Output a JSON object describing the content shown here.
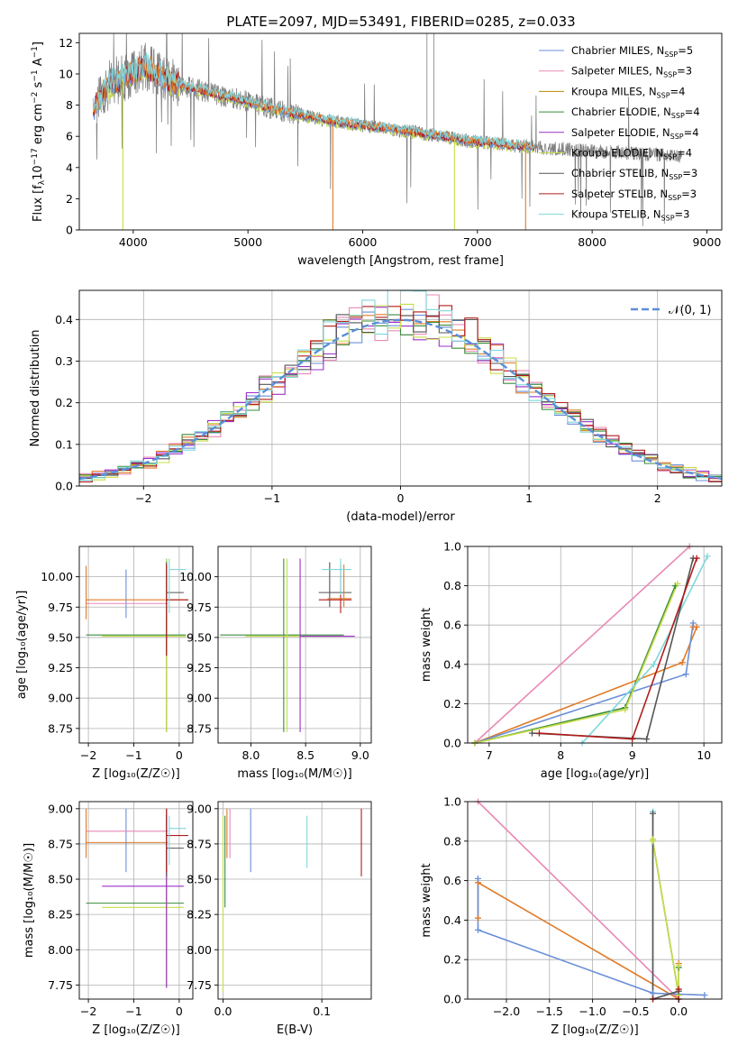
{
  "title": "PLATE=2097, MJD=53491, FIBERID=0285, z=0.033",
  "colors": {
    "chabrier_miles": "#6b8fd8",
    "salpeter_miles": "#e889b5",
    "kroupa_miles": "#b8860b",
    "chabrier_elodie": "#3a8c3a",
    "salpeter_elodie": "#9b30c8",
    "kroupa_elodie": "#c8dc4a",
    "chabrier_stelib": "#555555",
    "salpeter_stelib": "#b01c1c",
    "kroupa_stelib": "#7fd7dc",
    "orange": "#e07b28",
    "data_gray": "#808080",
    "normal_dash": "#5b8fd9"
  },
  "chart_data": [
    {
      "id": "spectrum",
      "type": "line",
      "xlabel": "wavelength [Angstrom, rest frame]",
      "ylabel_parts": [
        "Flux [f",
        "λ",
        "10",
        "−17",
        " erg cm",
        "−2",
        " s",
        "−1",
        " A",
        "−1",
        "]"
      ],
      "xlim": [
        3530,
        9130
      ],
      "ylim": [
        0,
        12.6
      ],
      "xticks": [
        4000,
        5000,
        6000,
        7000,
        8000,
        9000
      ],
      "yticks": [
        0,
        2,
        4,
        6,
        8,
        10,
        12
      ],
      "legend_position": "top-right",
      "legend": [
        {
          "label": "Chabrier MILES, N",
          "sub": "SSP",
          "suffix": "=5",
          "color_key": "chabrier_miles"
        },
        {
          "label": "Salpeter MILES, N",
          "sub": "SSP",
          "suffix": "=3",
          "color_key": "salpeter_miles"
        },
        {
          "label": "Kroupa MILES, N",
          "sub": "SSP",
          "suffix": "=4",
          "color_key": "kroupa_miles"
        },
        {
          "label": "Chabrier ELODIE, N",
          "sub": "SSP",
          "suffix": "=4",
          "color_key": "chabrier_elodie"
        },
        {
          "label": "Salpeter ELODIE, N",
          "sub": "SSP",
          "suffix": "=4",
          "color_key": "salpeter_elodie"
        },
        {
          "label": "Kroupa ELODIE, N",
          "sub": "SSP",
          "suffix": "=4",
          "color_key": "kroupa_elodie"
        },
        {
          "label": "Chabrier STELIB, N",
          "sub": "SSP",
          "suffix": "=3",
          "color_key": "chabrier_stelib"
        },
        {
          "label": "Salpeter STELIB, N",
          "sub": "SSP",
          "suffix": "=3",
          "color_key": "salpeter_stelib"
        },
        {
          "label": "Kroupa STELIB, N",
          "sub": "SSP",
          "suffix": "=3",
          "color_key": "kroupa_stelib"
        }
      ],
      "continuum": [
        [
          3650,
          7.8
        ],
        [
          3800,
          9.4
        ],
        [
          3950,
          9.8
        ],
        [
          4100,
          10.5
        ],
        [
          4300,
          9.6
        ],
        [
          4500,
          9.1
        ],
        [
          4700,
          8.7
        ],
        [
          4900,
          8.4
        ],
        [
          5100,
          8.0
        ],
        [
          5300,
          7.6
        ],
        [
          5500,
          7.3
        ],
        [
          5700,
          7.0
        ],
        [
          5900,
          6.8
        ],
        [
          6100,
          6.6
        ],
        [
          6300,
          6.4
        ],
        [
          6500,
          6.2
        ],
        [
          6700,
          6.0
        ],
        [
          6900,
          5.7
        ],
        [
          7100,
          5.6
        ],
        [
          7300,
          5.4
        ],
        [
          7500,
          5.3
        ]
      ],
      "drop_lines": [
        {
          "x": 3910,
          "y": 0,
          "color_key": "kroupa_elodie"
        },
        {
          "x": 5740,
          "y": 0,
          "color_key": "orange"
        },
        {
          "x": 6800,
          "y": 0,
          "color_key": "kroupa_elodie"
        },
        {
          "x": 7420,
          "y": 0,
          "color_key": "orange"
        }
      ]
    },
    {
      "id": "residuals",
      "type": "step",
      "xlabel": "(data-model)/error",
      "ylabel": "Normed distribution",
      "xlim": [
        -2.5,
        2.5
      ],
      "ylim": [
        0,
        0.47
      ],
      "xticks": [
        -2,
        -1,
        0,
        1,
        2
      ],
      "yticks": [
        0.0,
        0.1,
        0.2,
        0.3,
        0.4
      ],
      "grid": true,
      "legend_position": "top-right",
      "normal_label": "𝒩(0, 1)",
      "bin_width": 0.1
    },
    {
      "id": "age_vs_Z",
      "type": "errorbar",
      "xlabel": "Z [log₁₀(Z/Z☉)]",
      "ylabel": "age  [log₁₀(age/yr)]",
      "xlim": [
        -2.2,
        0.3
      ],
      "ylim": [
        8.63,
        10.25
      ],
      "xticks": [
        -2,
        -1,
        0
      ],
      "yticks": [
        8.75,
        9.0,
        9.25,
        9.5,
        9.75,
        10.0
      ],
      "grid": true,
      "points": [
        {
          "x": -1.17,
          "y": 9.86,
          "xerr": 0,
          "yerr": 0.2,
          "color_key": "chabrier_miles"
        },
        {
          "x": -1.1,
          "y": 9.78,
          "xlo": -2.05,
          "xhi": -0.25,
          "yerr": 0,
          "color_key": "salpeter_miles"
        },
        {
          "x": -1.1,
          "y": 9.81,
          "xlo": -2.05,
          "xhi": 0.2,
          "yerr": 0,
          "color_key": "orange"
        },
        {
          "x": -2.05,
          "y": 9.87,
          "xerr": 0,
          "yerr": 0.22,
          "color_key": "orange"
        },
        {
          "x": -0.28,
          "y": 9.52,
          "xlo": -2.05,
          "xhi": 0.15,
          "ylo": 8.72,
          "yhi": 10.15,
          "color_key": "chabrier_elodie"
        },
        {
          "x": -0.28,
          "y": 9.51,
          "xlo": -1.7,
          "xhi": 0.15,
          "ylo": 8.72,
          "yhi": 10.15,
          "color_key": "kroupa_elodie"
        },
        {
          "x": -0.28,
          "y": 9.87,
          "xlo": -0.28,
          "xhi": 0.1,
          "ylo": 9.35,
          "yhi": 10.12,
          "color_key": "chabrier_stelib"
        },
        {
          "x": -0.28,
          "y": 9.81,
          "xlo": -0.28,
          "xhi": 0.2,
          "ylo": 9.35,
          "yhi": 10.1,
          "color_key": "salpeter_stelib"
        },
        {
          "x": -0.22,
          "y": 10.06,
          "xlo": -0.22,
          "xhi": 0.15,
          "ylo": 9.7,
          "yhi": 10.15,
          "color_key": "kroupa_stelib"
        }
      ]
    },
    {
      "id": "age_vs_mass",
      "type": "errorbar",
      "xlabel": "mass [log₁₀(M/M☉)]",
      "ylabel": "",
      "xlim": [
        7.7,
        9.1
      ],
      "ylim": [
        8.63,
        10.25
      ],
      "xticks": [
        8.0,
        8.5,
        9.0
      ],
      "yticks": [
        8.75,
        9.0,
        9.25,
        9.5,
        9.75,
        10.0
      ],
      "grid": true,
      "points": [
        {
          "x": 8.3,
          "y": 9.52,
          "xlo": 7.72,
          "xhi": 8.85,
          "ylo": 8.72,
          "yhi": 10.15,
          "color_key": "chabrier_elodie"
        },
        {
          "x": 8.33,
          "y": 9.51,
          "xlo": 7.95,
          "xhi": 8.82,
          "ylo": 8.72,
          "yhi": 10.15,
          "color_key": "kroupa_elodie"
        },
        {
          "x": 8.45,
          "y": 9.51,
          "xlo": 8.45,
          "xhi": 8.95,
          "ylo": 8.72,
          "yhi": 10.15,
          "color_key": "salpeter_elodie"
        },
        {
          "x": 8.72,
          "y": 9.87,
          "xlo": 8.62,
          "xhi": 8.92,
          "ylo": 9.75,
          "yhi": 10.12,
          "color_key": "chabrier_stelib"
        },
        {
          "x": 8.82,
          "y": 9.81,
          "xlo": 8.62,
          "xhi": 8.92,
          "ylo": 9.7,
          "yhi": 10.1,
          "color_key": "salpeter_stelib"
        },
        {
          "x": 8.85,
          "y": 9.82,
          "xlo": 8.7,
          "xhi": 8.92,
          "ylo": 9.75,
          "yhi": 10.1,
          "color_key": "orange"
        },
        {
          "x": 8.82,
          "y": 10.06,
          "xlo": 8.65,
          "xhi": 8.92,
          "ylo": 9.85,
          "yhi": 10.15,
          "color_key": "kroupa_stelib"
        }
      ]
    },
    {
      "id": "weight_vs_age",
      "type": "line",
      "xlabel": "age  [log₁₀(age/yr)]",
      "ylabel": "mass weight",
      "xlim": [
        6.7,
        10.25
      ],
      "ylim": [
        0,
        1.0
      ],
      "xticks": [
        7,
        8,
        9,
        10
      ],
      "yticks": [
        0.0,
        0.2,
        0.4,
        0.6,
        0.8,
        1.0
      ],
      "grid": true,
      "series": [
        {
          "color_key": "salpeter_miles",
          "x": [
            6.8,
            9.8
          ],
          "y": [
            0.0,
            1.0
          ]
        },
        {
          "color_key": "orange",
          "x": [
            6.8,
            9.7,
            9.9,
            9.85
          ],
          "y": [
            0.0,
            0.41,
            0.59,
            0.59
          ]
        },
        {
          "color_key": "chabrier_miles",
          "x": [
            6.8,
            9.75,
            9.85
          ],
          "y": [
            0.0,
            0.35,
            0.61
          ]
        },
        {
          "color_key": "chabrier_elodie",
          "x": [
            6.8,
            8.9,
            9.6
          ],
          "y": [
            0.0,
            0.18,
            0.8
          ]
        },
        {
          "color_key": "kroupa_elodie",
          "x": [
            6.8,
            8.9,
            9.63
          ],
          "y": [
            0.0,
            0.17,
            0.81
          ]
        },
        {
          "color_key": "kroupa_stelib",
          "x": [
            8.3,
            9.3,
            10.05
          ],
          "y": [
            0.0,
            0.4,
            0.95
          ]
        },
        {
          "color_key": "chabrier_stelib",
          "x": [
            7.6,
            9.2,
            9.85
          ],
          "y": [
            0.05,
            0.02,
            0.94
          ]
        },
        {
          "color_key": "salpeter_stelib",
          "x": [
            7.7,
            9.0,
            9.9
          ],
          "y": [
            0.05,
            0.02,
            0.94
          ]
        }
      ]
    },
    {
      "id": "mass_vs_Z",
      "type": "errorbar",
      "xlabel": "Z [log₁₀(Z/Z☉)]",
      "ylabel": "mass [log₁₀(M/M☉)]",
      "xlim": [
        -2.2,
        0.3
      ],
      "ylim": [
        7.65,
        9.05
      ],
      "xticks": [
        -2,
        -1,
        0
      ],
      "yticks": [
        7.75,
        8.0,
        8.25,
        8.5,
        8.75,
        9.0
      ],
      "grid": true,
      "points": [
        {
          "x": -1.17,
          "y": 8.75,
          "xerr": 0,
          "ylo": 8.55,
          "yhi": 9.0,
          "color_key": "chabrier_miles"
        },
        {
          "x": -1.1,
          "y": 8.84,
          "xlo": -2.05,
          "xhi": -0.25,
          "yerr": 0,
          "color_key": "salpeter_miles"
        },
        {
          "x": -1.1,
          "y": 8.76,
          "xlo": -2.05,
          "xhi": -0.25,
          "yerr": 0,
          "color_key": "orange"
        },
        {
          "x": -2.05,
          "y": 8.8,
          "xerr": 0,
          "ylo": 8.65,
          "yhi": 9.0,
          "color_key": "orange"
        },
        {
          "x": -0.28,
          "y": 8.33,
          "xlo": -2.05,
          "xhi": 0.1,
          "ylo": 7.73,
          "yhi": 8.95,
          "color_key": "chabrier_elodie"
        },
        {
          "x": -0.28,
          "y": 8.3,
          "xlo": -1.7,
          "xhi": 0.1,
          "ylo": 7.73,
          "yhi": 8.95,
          "color_key": "kroupa_elodie"
        },
        {
          "x": -0.28,
          "y": 8.45,
          "xlo": -1.7,
          "xhi": 0.1,
          "ylo": 7.73,
          "yhi": 8.95,
          "color_key": "salpeter_elodie"
        },
        {
          "x": -0.28,
          "y": 8.72,
          "xlo": -0.28,
          "xhi": 0.1,
          "ylo": 8.52,
          "yhi": 9.0,
          "color_key": "chabrier_stelib"
        },
        {
          "x": -0.28,
          "y": 8.81,
          "xlo": -0.28,
          "xhi": 0.2,
          "ylo": 8.55,
          "yhi": 9.0,
          "color_key": "salpeter_stelib"
        },
        {
          "x": -0.22,
          "y": 8.86,
          "xlo": -0.22,
          "xhi": 0.15,
          "ylo": 8.6,
          "yhi": 8.95,
          "color_key": "kroupa_stelib"
        }
      ]
    },
    {
      "id": "mass_vs_ebv",
      "type": "errorbar",
      "xlabel": "E(B-V)",
      "ylabel": "",
      "xlim": [
        -0.005,
        0.15
      ],
      "ylim": [
        7.65,
        9.05
      ],
      "xticks": [
        0.0,
        0.1
      ],
      "yticks": [
        7.75,
        8.0,
        8.25,
        8.5,
        8.75,
        9.0
      ],
      "grid": true,
      "points": [
        {
          "x": 0.0,
          "y": 8.3,
          "ylo": 7.7,
          "yhi": 8.95,
          "color_key": "kroupa_elodie"
        },
        {
          "x": 0.002,
          "y": 8.5,
          "ylo": 8.3,
          "yhi": 8.95,
          "color_key": "chabrier_elodie"
        },
        {
          "x": 0.004,
          "y": 8.8,
          "ylo": 8.65,
          "yhi": 9.0,
          "color_key": "orange"
        },
        {
          "x": 0.007,
          "y": 8.8,
          "ylo": 8.65,
          "yhi": 9.0,
          "color_key": "salpeter_miles"
        },
        {
          "x": 0.028,
          "y": 8.75,
          "ylo": 8.55,
          "yhi": 9.0,
          "color_key": "chabrier_miles"
        },
        {
          "x": 0.085,
          "y": 8.8,
          "ylo": 8.58,
          "yhi": 8.95,
          "color_key": "kroupa_stelib"
        },
        {
          "x": 0.14,
          "y": 8.8,
          "ylo": 8.52,
          "yhi": 9.0,
          "color_key": "salpeter_stelib"
        }
      ]
    },
    {
      "id": "weight_vs_Z",
      "type": "line",
      "xlabel": "Z [log₁₀(Z/Z☉)]",
      "ylabel": "mass weight",
      "xlim": [
        -2.45,
        0.5
      ],
      "ylim": [
        0,
        1.0
      ],
      "xticks": [
        -2.0,
        -1.5,
        -1.0,
        -0.5,
        0.0
      ],
      "yticks": [
        0.0,
        0.2,
        0.4,
        0.6,
        0.8,
        1.0
      ],
      "grid": true,
      "series": [
        {
          "color_key": "salpeter_miles",
          "x": [
            -2.33,
            0.0
          ],
          "y": [
            1.0,
            0.0
          ]
        },
        {
          "color_key": "orange",
          "x": [
            -2.33,
            -2.33,
            0.0,
            0.0
          ],
          "y": [
            0.41,
            0.59,
            0.0,
            0.18
          ]
        },
        {
          "color_key": "chabrier_miles",
          "x": [
            -2.33,
            -2.33,
            -0.3,
            0.3
          ],
          "y": [
            0.61,
            0.35,
            0.03,
            0.02
          ]
        },
        {
          "color_key": "chabrier_elodie",
          "x": [
            -0.3,
            -0.3,
            0.0,
            0.0
          ],
          "y": [
            0.81,
            0.8,
            0.02,
            0.16
          ]
        },
        {
          "color_key": "kroupa_elodie",
          "x": [
            -0.3,
            -0.3,
            0.0,
            0.0
          ],
          "y": [
            0.81,
            0.8,
            0.02,
            0.17
          ]
        },
        {
          "color_key": "kroupa_stelib",
          "x": [
            -0.3,
            -0.3,
            0.0
          ],
          "y": [
            0.95,
            0.0,
            0.04
          ]
        },
        {
          "color_key": "chabrier_stelib",
          "x": [
            -0.3,
            -0.3,
            0.0
          ],
          "y": [
            0.94,
            0.0,
            0.04
          ]
        },
        {
          "color_key": "salpeter_stelib",
          "x": [
            -0.3,
            0.0,
            0.0
          ],
          "y": [
            0.0,
            0.0,
            0.05
          ]
        }
      ]
    }
  ]
}
